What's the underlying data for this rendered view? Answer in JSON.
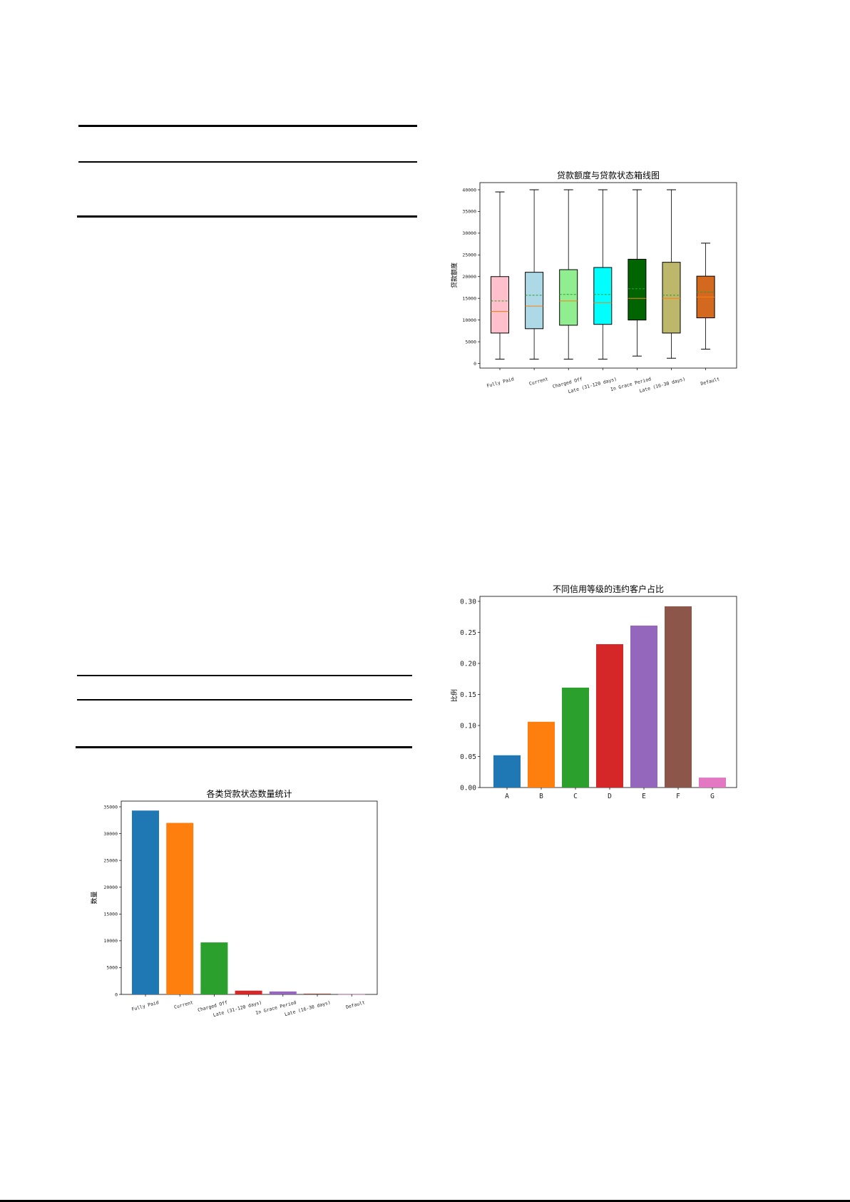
{
  "chart_data": [
    {
      "type": "box",
      "title": "贷款额度与贷款状态箱线图",
      "ylabel": "贷款额度",
      "ylim": [
        0,
        42000
      ],
      "yticks": [
        0,
        5000,
        10000,
        15000,
        20000,
        25000,
        30000,
        35000,
        40000
      ],
      "categories": [
        "Fully Paid",
        "Current",
        "Charged Off",
        "Late (31-120 days)",
        "In Grace Period",
        "Late (16-30 days)",
        "Default"
      ],
      "boxes": [
        {
          "whisker_low": 1000,
          "q1": 7000,
          "median": 12000,
          "mean": 14400,
          "q3": 20000,
          "whisker_high": 39500,
          "color": "#ffc0cb"
        },
        {
          "whisker_low": 1000,
          "q1": 8000,
          "median": 13200,
          "mean": 15700,
          "q3": 21000,
          "whisker_high": 40000,
          "color": "#add8e6"
        },
        {
          "whisker_low": 1000,
          "q1": 8800,
          "median": 14400,
          "mean": 15900,
          "q3": 21600,
          "whisker_high": 40000,
          "color": "#90ee90"
        },
        {
          "whisker_low": 1000,
          "q1": 9000,
          "median": 14000,
          "mean": 15900,
          "q3": 22100,
          "whisker_high": 40000,
          "color": "#00ffff"
        },
        {
          "whisker_low": 1700,
          "q1": 10000,
          "median": 15000,
          "mean": 17200,
          "q3": 24000,
          "whisker_high": 40000,
          "color": "#006400"
        },
        {
          "whisker_low": 1200,
          "q1": 7000,
          "median": 15000,
          "mean": 15700,
          "q3": 23300,
          "whisker_high": 40000,
          "color": "#bdb76b"
        },
        {
          "whisker_low": 3300,
          "q1": 10500,
          "median": 15300,
          "mean": 16400,
          "q3": 20100,
          "whisker_high": 27700,
          "color": "#d2691e"
        }
      ],
      "median_color": "#ff7f0e",
      "mean_color": "#2ca02c"
    },
    {
      "type": "bar",
      "title": "不同信用等级的违约客户占比",
      "ylabel": "比例",
      "ylim": [
        0,
        0.305
      ],
      "yticks": [
        0.0,
        0.05,
        0.1,
        0.15,
        0.2,
        0.25,
        0.3
      ],
      "ytick_labels": [
        "0.00",
        "0.05",
        "0.10",
        "0.15",
        "0.20",
        "0.25",
        "0.30"
      ],
      "categories": [
        "A",
        "B",
        "C",
        "D",
        "E",
        "F",
        "G"
      ],
      "values": [
        0.052,
        0.106,
        0.161,
        0.231,
        0.261,
        0.292,
        0.016
      ],
      "colors": [
        "#1f77b4",
        "#ff7f0e",
        "#2ca02c",
        "#d62728",
        "#9467bd",
        "#8c564b",
        "#e377c2"
      ]
    },
    {
      "type": "bar",
      "title": "各类贷款状态数量统计",
      "ylabel": "数量",
      "ylim": [
        0,
        36000
      ],
      "yticks": [
        0,
        5000,
        10000,
        15000,
        20000,
        25000,
        30000,
        35000
      ],
      "categories": [
        "Fully Paid",
        "Current",
        "Charged Off",
        "Late (31-120 days)",
        "In Grace Period",
        "Late (16-30 days)",
        "Default"
      ],
      "values": [
        34300,
        32000,
        9700,
        700,
        550,
        150,
        30
      ],
      "colors": [
        "#1f77b4",
        "#ff7f0e",
        "#2ca02c",
        "#d62728",
        "#9467bd",
        "#8c564b",
        "#e377c2"
      ]
    }
  ]
}
